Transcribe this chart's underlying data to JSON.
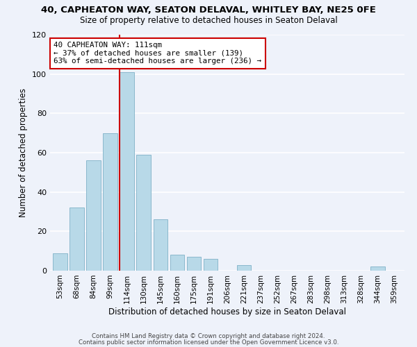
{
  "title": "40, CAPHEATON WAY, SEATON DELAVAL, WHITLEY BAY, NE25 0FE",
  "subtitle": "Size of property relative to detached houses in Seaton Delaval",
  "xlabel": "Distribution of detached houses by size in Seaton Delaval",
  "ylabel": "Number of detached properties",
  "bar_labels": [
    "53sqm",
    "68sqm",
    "84sqm",
    "99sqm",
    "114sqm",
    "130sqm",
    "145sqm",
    "160sqm",
    "175sqm",
    "191sqm",
    "206sqm",
    "221sqm",
    "237sqm",
    "252sqm",
    "267sqm",
    "283sqm",
    "298sqm",
    "313sqm",
    "328sqm",
    "344sqm",
    "359sqm"
  ],
  "bar_heights": [
    9,
    32,
    56,
    70,
    101,
    59,
    26,
    8,
    7,
    6,
    0,
    3,
    0,
    0,
    0,
    0,
    0,
    0,
    0,
    2,
    0
  ],
  "bar_color": "#b8d9e8",
  "bar_edge_color": "#8ab8cc",
  "highlight_bar_index": 4,
  "vline_color": "#cc0000",
  "annotation_text": "40 CAPHEATON WAY: 111sqm\n← 37% of detached houses are smaller (139)\n63% of semi-detached houses are larger (236) →",
  "annotation_box_color": "#ffffff",
  "annotation_box_edge_color": "#cc0000",
  "ylim": [
    0,
    120
  ],
  "yticks": [
    0,
    20,
    40,
    60,
    80,
    100,
    120
  ],
  "footer_line1": "Contains HM Land Registry data © Crown copyright and database right 2024.",
  "footer_line2": "Contains public sector information licensed under the Open Government Licence v3.0.",
  "background_color": "#eef2fa",
  "grid_color": "#ffffff"
}
